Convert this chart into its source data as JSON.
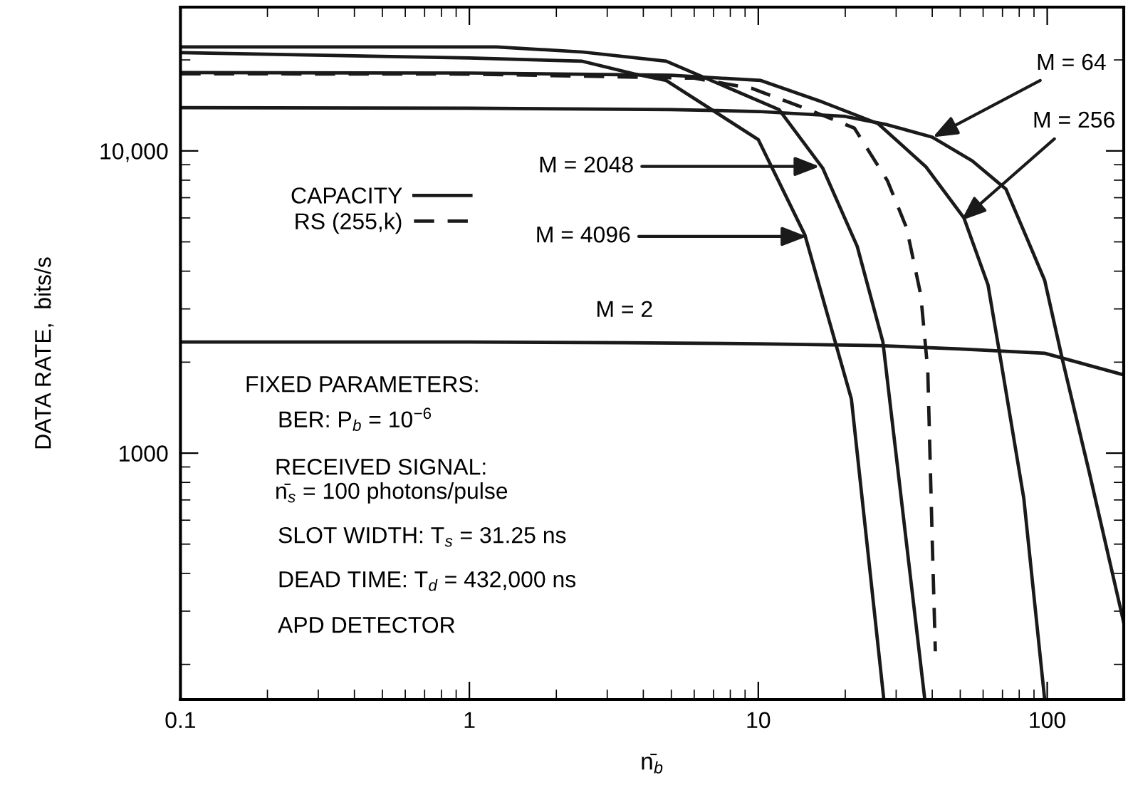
{
  "chart_data": {
    "type": "line",
    "xlabel": "n̄$_{b}$",
    "ylabel": "DATA RATE,  bits/s",
    "log": "xy",
    "xlim": [
      0.1,
      184
    ],
    "ylim": [
      153,
      29900
    ],
    "xticks": [
      0.1,
      1,
      10,
      100
    ],
    "yticks": [
      1000,
      {
        "value": 10000,
        "label": "10,000"
      }
    ],
    "grid": false,
    "legend": "top left",
    "marker": "none",
    "series": [
      {
        "name": "CAPACITY",
        "color": "#1a1a1a",
        "line_style": "solid",
        "x": [
          0.1,
          1,
          3.44,
          10,
          26,
          50,
          98,
          184
        ],
        "values": [
          2330,
          2330,
          2320,
          2300,
          2270,
          2210,
          2140,
          1815
        ]
      },
      {
        "color": "#1a1a1a",
        "line_style": "solid",
        "x": [
          0.1,
          1,
          5,
          10,
          20,
          28,
          40,
          55,
          72,
          85,
          98,
          113,
          140,
          184
        ],
        "values": [
          13900,
          13850,
          13700,
          13500,
          13000,
          12200,
          11100,
          9270,
          7470,
          5150,
          3730,
          2030,
          859,
          275
        ]
      },
      {
        "color": "#1a1a1a",
        "line_style": "solid",
        "x": [
          0.1,
          1,
          5,
          10.2,
          16.7,
          26,
          38,
          51.5,
          62.4,
          70,
          83,
          98
        ],
        "values": [
          18150,
          18100,
          17800,
          17100,
          14500,
          12300,
          8870,
          6000,
          3600,
          1880,
          707,
          153
        ]
      },
      {
        "color": "#1a1a1a",
        "line_style": "solid",
        "x": [
          0.1,
          1.24,
          2.46,
          4.8,
          11.8,
          16.7,
          22,
          27,
          37.7
        ],
        "values": [
          22080,
          22080,
          21240,
          19800,
          13700,
          8780,
          4830,
          2330,
          153
        ]
      },
      {
        "color": "#1a1a1a",
        "line_style": "solid",
        "x": [
          0.1,
          1,
          2.46,
          3.7,
          4.8,
          10,
          14.5,
          21,
          27.2
        ],
        "values": [
          21150,
          20300,
          19800,
          18000,
          17100,
          10900,
          5270,
          1510,
          153
        ]
      },
      {
        "name": "RS (255,k)",
        "color": "#1a1a1a",
        "line_style": "dashed",
        "x": [
          0.1,
          1,
          6,
          9.5,
          14.9,
          21.5,
          28,
          32.6,
          36.5,
          38.6,
          40,
          41
        ],
        "values": [
          17990,
          17950,
          17400,
          16100,
          13700,
          11900,
          7960,
          5560,
          3340,
          1880,
          515,
          221
        ]
      }
    ],
    "annotations": [
      {
        "text": "M = 2",
        "x": 3.44,
        "y": 2320
      },
      {
        "text": "M = 64",
        "x": 40.2,
        "y": 11100
      },
      {
        "text": "M = 256",
        "x": 50.4,
        "y": 5880
      },
      {
        "text": "M = 2048",
        "x": 16.3,
        "y": 8880
      },
      {
        "text": "M = 4096",
        "x": 14.7,
        "y": 5210
      },
      "FIXED PARAMETERS:",
      "BER: P$_{b}$ = 10$^{−6}$",
      "RECEIVED SIGNAL:",
      "n̄$_{s}$ = 100 photons/pulse",
      "SLOT WIDTH: T$_{s}$ = 31.25 ns",
      "DEAD TIME: T$_{d}$ = 432,000 ns",
      "APD DETECTOR"
    ]
  }
}
